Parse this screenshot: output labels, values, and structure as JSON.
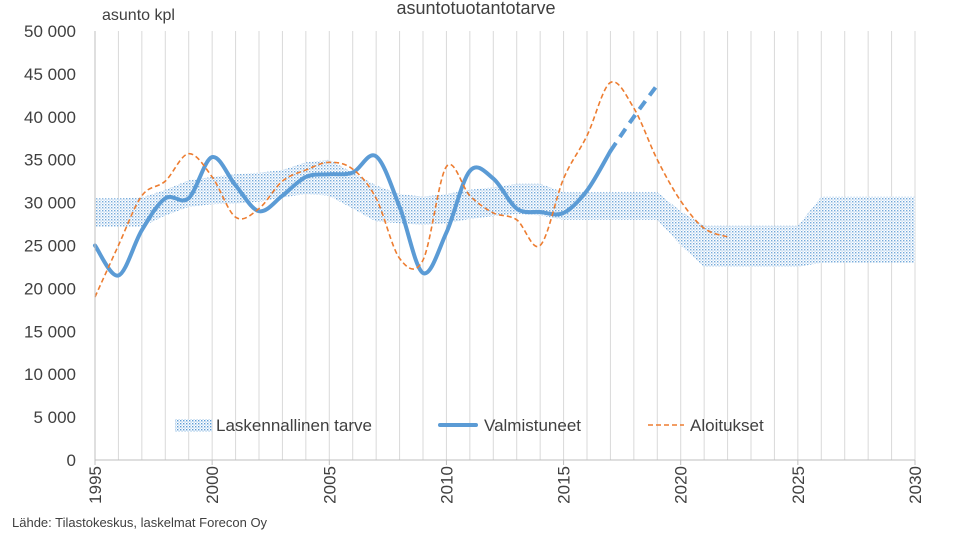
{
  "chart_data": {
    "type": "line",
    "title": "asuntotuotantotarve",
    "unit_label": "asunto kpl",
    "source": "Lähde: Tilastokeskus, laskelmat Forecon Oy",
    "xlim": [
      1995,
      2030
    ],
    "ylim": [
      0,
      50000
    ],
    "y_ticks": [
      0,
      5000,
      10000,
      15000,
      20000,
      25000,
      30000,
      35000,
      40000,
      45000,
      50000
    ],
    "y_tick_labels": [
      "0",
      "5 000",
      "10 000",
      "15 000",
      "20 000",
      "25 000",
      "30 000",
      "35 000",
      "40 000",
      "45 000",
      "50 000"
    ],
    "x_ticks": [
      1995,
      2000,
      2005,
      2010,
      2015,
      2020,
      2025,
      2030
    ],
    "x_tick_labels": [
      "1995",
      "2000",
      "2005",
      "2010",
      "2015",
      "2020",
      "2025",
      "2030"
    ],
    "grid": "vertical yearly",
    "legend_position": "bottom-inside",
    "colors": {
      "tarve": "#5b9bd5",
      "valmistuneet": "#5b9bd5",
      "aloitukset": "#ed7d31"
    },
    "series": [
      {
        "name": "Laskennallinen tarve",
        "style": "band",
        "x": [
          1995,
          1996,
          1997,
          1998,
          1999,
          2000,
          2001,
          2002,
          2003,
          2004,
          2005,
          2006,
          2007,
          2008,
          2009,
          2010,
          2011,
          2012,
          2013,
          2014,
          2015,
          2016,
          2017,
          2018,
          2019,
          2020,
          2021,
          2022,
          2023,
          2024,
          2025,
          2026,
          2027,
          2028,
          2029,
          2030
        ],
        "upper": [
          30500,
          30500,
          30600,
          31500,
          32600,
          33000,
          33300,
          33500,
          33800,
          34700,
          35000,
          33500,
          32000,
          31000,
          30700,
          31000,
          31500,
          31800,
          32200,
          32200,
          31200,
          31200,
          31200,
          31200,
          31200,
          29000,
          27300,
          27300,
          27300,
          27300,
          27300,
          30700,
          30700,
          30700,
          30700,
          30700
        ],
        "lower": [
          27200,
          27200,
          27200,
          28500,
          29500,
          29800,
          29900,
          30100,
          30600,
          31000,
          30800,
          29300,
          27800,
          27600,
          27400,
          27600,
          28100,
          28400,
          28700,
          28500,
          28000,
          28000,
          28000,
          28000,
          28000,
          25000,
          22500,
          22500,
          22500,
          22500,
          22500,
          23000,
          23000,
          23000,
          23000,
          23000
        ]
      },
      {
        "name": "Valmistuneet",
        "style": "solid",
        "x": [
          1995,
          1996,
          1997,
          1998,
          1999,
          2000,
          2001,
          2002,
          2003,
          2004,
          2005,
          2006,
          2007,
          2008,
          2009,
          2010,
          2011,
          2012,
          2013,
          2014,
          2015,
          2016,
          2017
        ],
        "values": [
          25000,
          21500,
          26800,
          30500,
          30500,
          35300,
          32000,
          29000,
          30800,
          33000,
          33300,
          33500,
          35400,
          29500,
          21800,
          26500,
          33700,
          32800,
          29300,
          28900,
          28800,
          31400,
          36000
        ]
      },
      {
        "name": "Valmistuneet (ennuste)",
        "style": "dashed",
        "x": [
          2017,
          2018,
          2019
        ],
        "values": [
          36000,
          40000,
          43700
        ]
      },
      {
        "name": "Aloitukset",
        "style": "dashed-thin",
        "x": [
          1995,
          1996,
          1997,
          1998,
          1999,
          2000,
          2001,
          2002,
          2003,
          2004,
          2005,
          2006,
          2007,
          2008,
          2009,
          2010,
          2011,
          2012,
          2013,
          2014,
          2015,
          2016,
          2017,
          2018,
          2019,
          2020,
          2021,
          2022
        ],
        "values": [
          19000,
          25000,
          30800,
          32500,
          35700,
          33000,
          28300,
          29300,
          32500,
          33800,
          34700,
          33900,
          30500,
          23500,
          23300,
          34200,
          30800,
          28800,
          28000,
          25000,
          32800,
          37800,
          44000,
          41000,
          35000,
          30200,
          27000,
          26000
        ]
      }
    ],
    "legend": [
      {
        "label": "Laskennallinen tarve",
        "style": "band"
      },
      {
        "label": "Valmistuneet",
        "style": "solid"
      },
      {
        "label": "Aloitukset",
        "style": "dashed-thin"
      }
    ]
  }
}
